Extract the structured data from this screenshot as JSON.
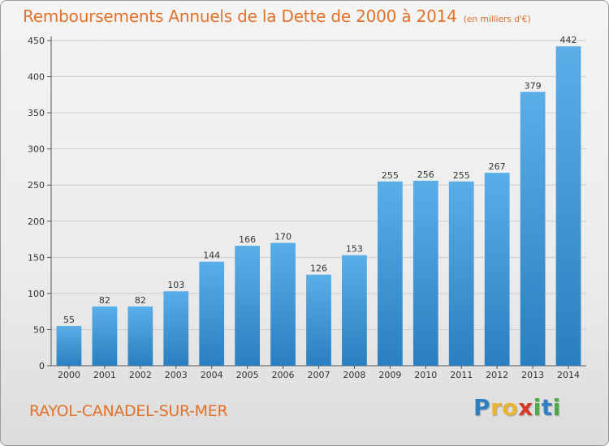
{
  "header": {
    "title": "Remboursements Annuels de la Dette de 2000 à 2014",
    "subtitle": "(en milliers d'€)"
  },
  "footer": {
    "commune": "RAYOL-CANADEL-SUR-MER",
    "logo_letters": [
      {
        "ch": "P",
        "color": "#2f7fc1"
      },
      {
        "ch": "r",
        "color": "#e8b530"
      },
      {
        "ch": "o",
        "color": "#e8b530"
      },
      {
        "ch": "x",
        "color": "#d63a2a"
      },
      {
        "ch": "i",
        "color": "#4da84a"
      },
      {
        "ch": "t",
        "color": "#2f7fc1"
      },
      {
        "ch": "i",
        "color": "#4da84a"
      }
    ]
  },
  "colors": {
    "bar_top": "#5aaee8",
    "bar_bottom": "#2a7fc0",
    "grid": "#cccccc",
    "axis": "#555555",
    "accent": "#e2722a"
  },
  "chart_data": {
    "type": "bar",
    "title": "Remboursements Annuels de la Dette de 2000 à 2014",
    "subtitle": "(en milliers d'€)",
    "categories": [
      "2000",
      "2001",
      "2002",
      "2003",
      "2004",
      "2005",
      "2006",
      "2007",
      "2008",
      "2009",
      "2010",
      "2011",
      "2012",
      "2013",
      "2014"
    ],
    "values": [
      55,
      82,
      82,
      103,
      144,
      166,
      170,
      126,
      153,
      255,
      256,
      255,
      267,
      379,
      442
    ],
    "ylim": [
      0,
      450
    ],
    "yticks": [
      0,
      50,
      100,
      150,
      200,
      250,
      300,
      350,
      400,
      450
    ],
    "grid": true,
    "xlabel": "",
    "ylabel": ""
  }
}
